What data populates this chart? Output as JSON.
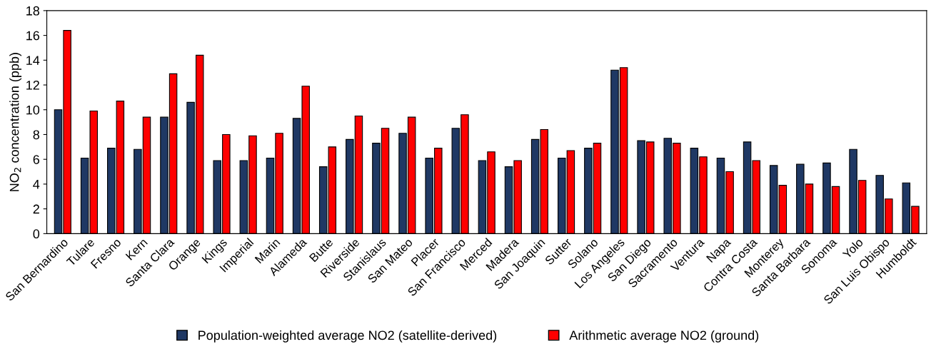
{
  "chart_data": {
    "type": "bar",
    "ylabel": "NO$_{2}$ concentration (ppb)",
    "categories": [
      "San Bernardino",
      "Tulare",
      "Fresno",
      "Kern",
      "Santa Clara",
      "Orange",
      "Kings",
      "Imperial",
      "Marin",
      "Alameda",
      "Butte",
      "Riverside",
      "Stanislaus",
      "San Mateo",
      "Placer",
      "San Francisco",
      "Merced",
      "Madera",
      "San Joaquin",
      "Sutter",
      "Solano",
      "Los Angeles",
      "San Diego",
      "Sacramento",
      "Ventura",
      "Napa",
      "Contra Costa",
      "Monterey",
      "Santa Barbara",
      "Sonoma",
      "Yolo",
      "San Luis Obispo",
      "Humboldt"
    ],
    "series": [
      {
        "name": "Population-weighted average NO2 (satellite-derived)",
        "color": "#1f3864",
        "values": [
          10.0,
          6.1,
          6.9,
          6.8,
          9.4,
          10.6,
          5.9,
          5.9,
          6.1,
          9.3,
          5.4,
          7.6,
          7.3,
          8.1,
          6.1,
          8.5,
          5.9,
          5.4,
          7.6,
          6.1,
          6.9,
          13.2,
          7.5,
          7.7,
          6.9,
          6.1,
          7.4,
          5.5,
          5.6,
          5.7,
          6.8,
          4.7,
          4.1
        ]
      },
      {
        "name": "Arithmetic average NO2 (ground)",
        "color": "#ff0000",
        "values": [
          16.4,
          9.9,
          10.7,
          9.4,
          12.9,
          14.4,
          8.0,
          7.9,
          8.1,
          11.9,
          7.0,
          9.5,
          8.5,
          9.4,
          6.9,
          9.6,
          6.6,
          5.9,
          8.4,
          6.7,
          7.3,
          13.4,
          7.4,
          7.3,
          6.2,
          5.0,
          5.9,
          3.9,
          4.0,
          3.8,
          4.3,
          2.8,
          2.2
        ]
      }
    ],
    "ylim": [
      0,
      18
    ],
    "yticks": [
      0,
      2,
      4,
      6,
      8,
      10,
      12,
      14,
      16,
      18
    ],
    "grid": false,
    "legend": "bottom"
  }
}
